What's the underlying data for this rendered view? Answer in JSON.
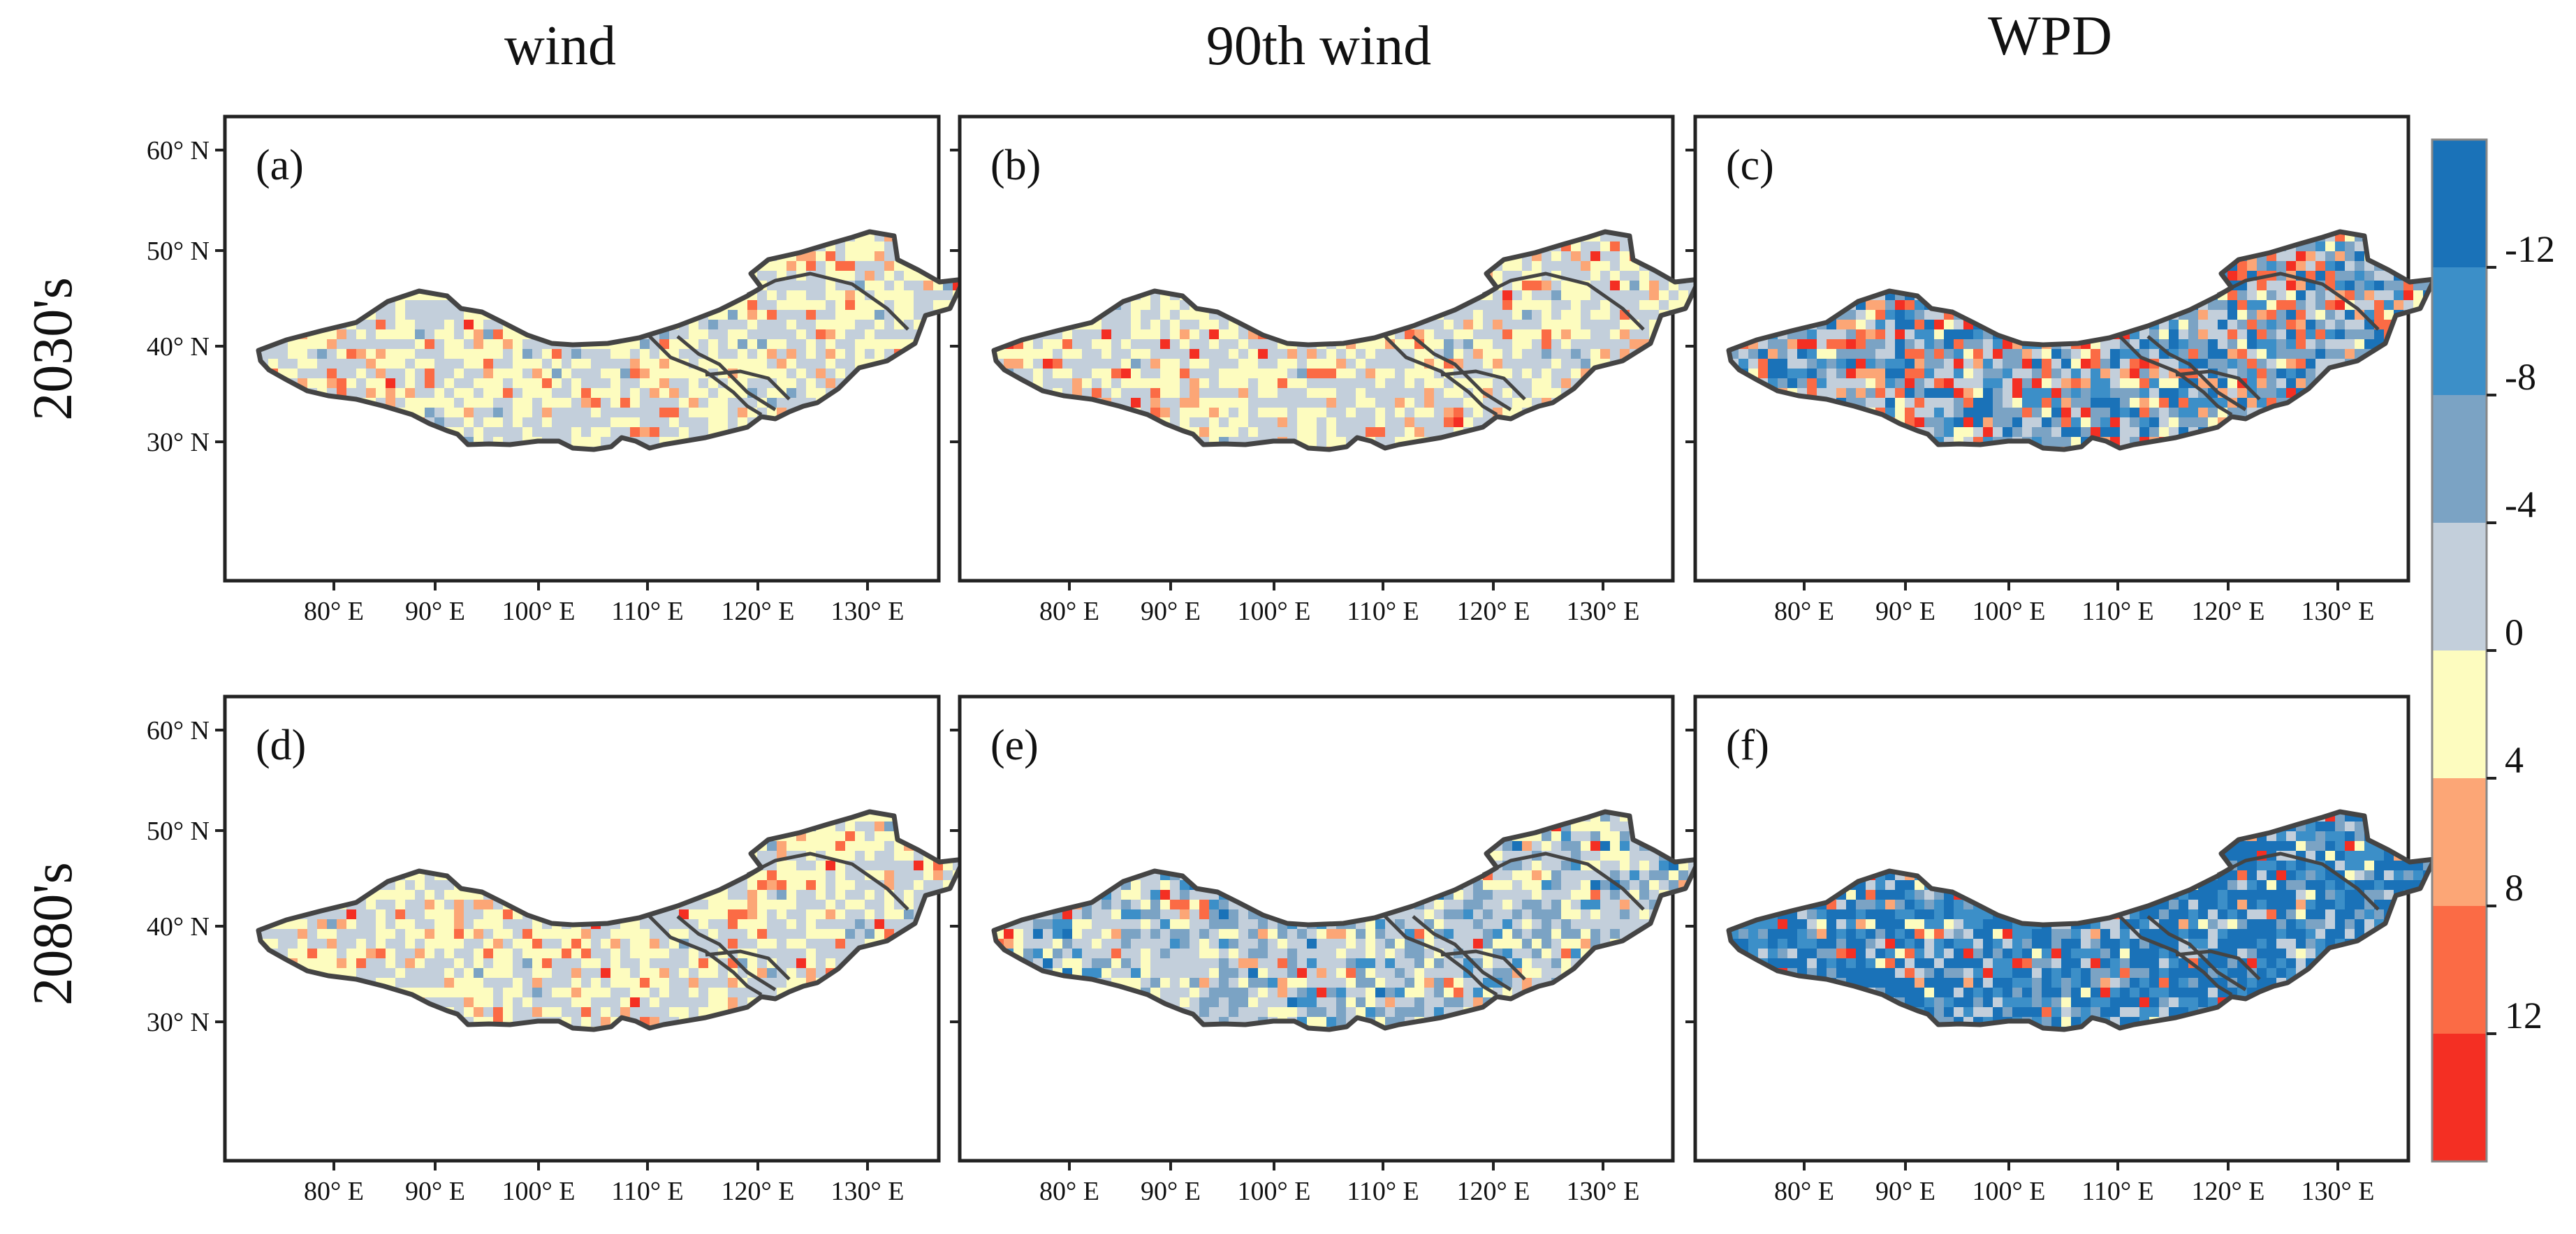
{
  "figure": {
    "column_titles": [
      "wind",
      "90th  wind",
      "WPD"
    ],
    "row_titles": [
      "2030's",
      "2080's"
    ],
    "lat_ticks": [
      "60° N",
      "50° N",
      "40° N",
      "30° N"
    ],
    "lon_ticks": [
      "80° E",
      "90° E",
      "100° E",
      "110° E",
      "120° E",
      "130° E"
    ]
  },
  "panels": [
    {
      "label": "(a)",
      "column": "wind",
      "period": "2030's",
      "dominant_class": "0",
      "tone": "light"
    },
    {
      "label": "(b)",
      "column": "90th  wind",
      "period": "2030's",
      "dominant_class": "-4",
      "tone": "light"
    },
    {
      "label": "(c)",
      "column": "WPD",
      "period": "2030's",
      "dominant_class": "-8",
      "tone": "mixed"
    },
    {
      "label": "(d)",
      "column": "wind",
      "period": "2080's",
      "dominant_class": "-4",
      "tone": "light"
    },
    {
      "label": "(e)",
      "column": "90th  wind",
      "period": "2080's",
      "dominant_class": "-4",
      "tone": "medium"
    },
    {
      "label": "(f)",
      "column": "WPD",
      "period": "2080's",
      "dominant_class": "-12",
      "tone": "blue"
    }
  ],
  "colorbar": {
    "labels": [
      "-12",
      "-8",
      "-4",
      "0",
      "4",
      "8",
      "12"
    ],
    "colors": [
      "#1a72b8",
      "#3c8fc8",
      "#7ba3c4",
      "#c3cfdb",
      "#fdfcbf",
      "#fca676",
      "#fb6b45",
      "#f42f23"
    ]
  }
}
